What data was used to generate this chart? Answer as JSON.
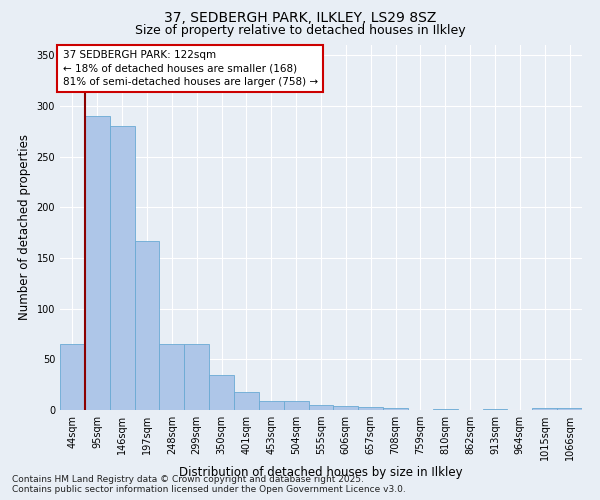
{
  "title1": "37, SEDBERGH PARK, ILKLEY, LS29 8SZ",
  "title2": "Size of property relative to detached houses in Ilkley",
  "xlabel": "Distribution of detached houses by size in Ilkley",
  "ylabel": "Number of detached properties",
  "categories": [
    "44sqm",
    "95sqm",
    "146sqm",
    "197sqm",
    "248sqm",
    "299sqm",
    "350sqm",
    "401sqm",
    "453sqm",
    "504sqm",
    "555sqm",
    "606sqm",
    "657sqm",
    "708sqm",
    "759sqm",
    "810sqm",
    "862sqm",
    "913sqm",
    "964sqm",
    "1015sqm",
    "1066sqm"
  ],
  "values": [
    65,
    290,
    280,
    167,
    65,
    65,
    35,
    18,
    9,
    9,
    5,
    4,
    3,
    2,
    0,
    1,
    0,
    1,
    0,
    2,
    2
  ],
  "bar_color": "#aec6e8",
  "bar_edge_color": "#6aaad4",
  "vline_color": "#8b0000",
  "annotation_title": "37 SEDBERGH PARK: 122sqm",
  "annotation_line2": "← 18% of detached houses are smaller (168)",
  "annotation_line3": "81% of semi-detached houses are larger (758) →",
  "annotation_box_color": "#ffffff",
  "annotation_box_edge": "#cc0000",
  "ylim": [
    0,
    360
  ],
  "yticks": [
    0,
    50,
    100,
    150,
    200,
    250,
    300,
    350
  ],
  "bg_color": "#e8eef5",
  "plot_bg_color": "#e8eef5",
  "footer1": "Contains HM Land Registry data © Crown copyright and database right 2025.",
  "footer2": "Contains public sector information licensed under the Open Government Licence v3.0.",
  "title1_fontsize": 10,
  "title2_fontsize": 9,
  "tick_fontsize": 7,
  "label_fontsize": 8.5,
  "footer_fontsize": 6.5,
  "ann_fontsize": 7.5
}
